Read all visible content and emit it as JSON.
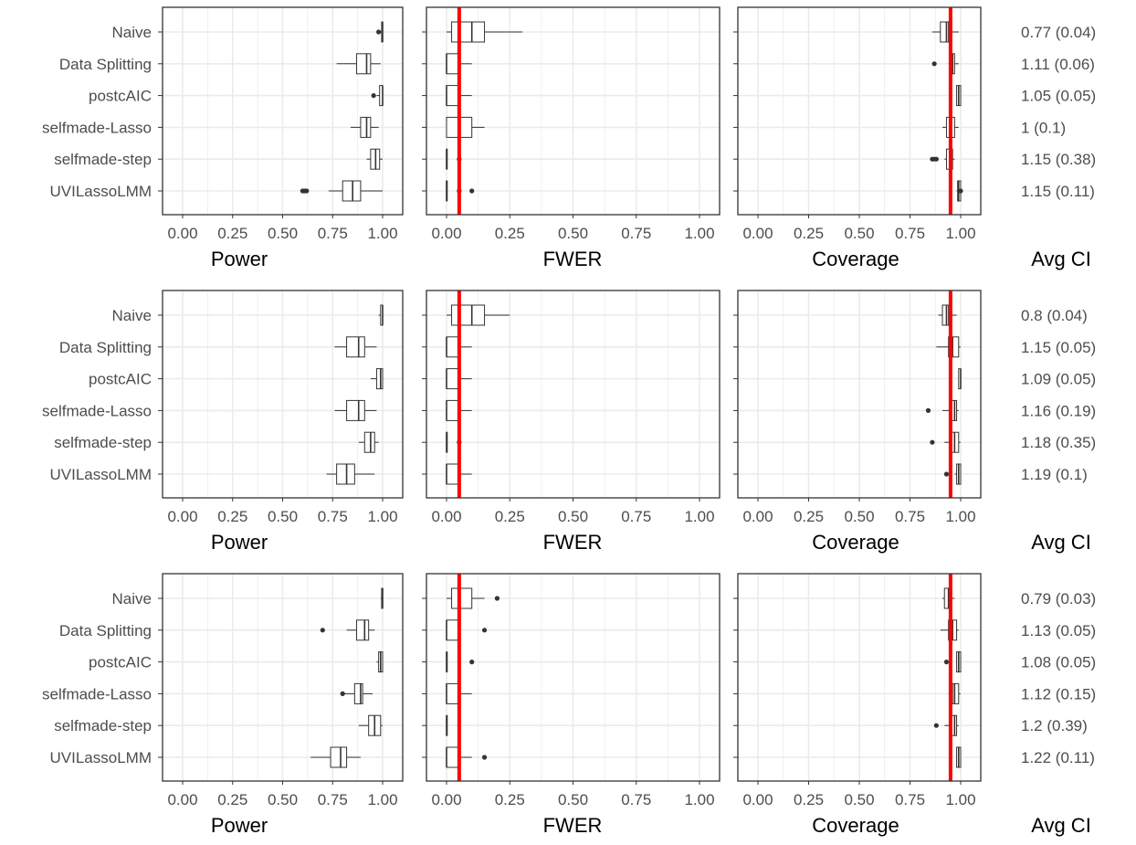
{
  "chart_data": {
    "type": "boxplot",
    "methods": [
      "Naive",
      "Data Splitting",
      "postcAIC",
      "selfmade-Lasso",
      "selfmade-step",
      "UVILassoLMM"
    ],
    "panel_xlabels": [
      "Power",
      "FWER",
      "Coverage",
      "Avg CI"
    ],
    "xlim": [
      0,
      1
    ],
    "x_ticks": [
      "0.00",
      "0.25",
      "0.50",
      "0.75",
      "1.00"
    ],
    "reference_lines": {
      "FWER": 0.05,
      "Coverage": 0.95
    },
    "reference_line_color": "#ff0000",
    "rows": [
      {
        "power": [
          {
            "whisker": [
              0.99,
              1.0
            ],
            "box": [
              0.995,
              1.0,
              1.0
            ],
            "outliers": [
              0.98
            ]
          },
          {
            "whisker": [
              0.77,
              0.99
            ],
            "box": [
              0.87,
              0.92,
              0.94
            ],
            "outliers": []
          },
          {
            "whisker": [
              0.97,
              1.0
            ],
            "box": [
              0.985,
              1.0,
              1.0
            ],
            "outliers": [
              0.955
            ]
          },
          {
            "whisker": [
              0.84,
              0.98
            ],
            "box": [
              0.89,
              0.92,
              0.94
            ],
            "outliers": []
          },
          {
            "whisker": [
              0.92,
              1.0
            ],
            "box": [
              0.94,
              0.965,
              0.985
            ],
            "outliers": []
          },
          {
            "whisker": [
              0.73,
              1.0
            ],
            "box": [
              0.8,
              0.85,
              0.89
            ],
            "outliers": [
              0.6,
              0.61,
              0.62
            ]
          }
        ],
        "fwer": [
          {
            "whisker": [
              0.0,
              0.3
            ],
            "box": [
              0.02,
              0.1,
              0.15
            ],
            "outliers": []
          },
          {
            "whisker": [
              0.0,
              0.1
            ],
            "box": [
              0.0,
              0.0,
              0.05
            ],
            "outliers": []
          },
          {
            "whisker": [
              0.0,
              0.1
            ],
            "box": [
              0.0,
              0.0,
              0.05
            ],
            "outliers": []
          },
          {
            "whisker": [
              0.0,
              0.15
            ],
            "box": [
              0.0,
              0.05,
              0.1
            ],
            "outliers": []
          },
          {
            "whisker": [
              0.0,
              0.0
            ],
            "box": [
              0.0,
              0.0,
              0.0
            ],
            "outliers": [
              0.05
            ]
          },
          {
            "whisker": [
              0.0,
              0.0
            ],
            "box": [
              0.0,
              0.0,
              0.0
            ],
            "outliers": [
              0.05,
              0.1
            ]
          }
        ],
        "coverage": [
          {
            "whisker": [
              0.86,
              0.99
            ],
            "box": [
              0.9,
              0.93,
              0.94
            ],
            "outliers": []
          },
          {
            "whisker": [
              0.94,
              0.99
            ],
            "box": [
              0.95,
              0.96,
              0.97
            ],
            "outliers": [
              0.87
            ]
          },
          {
            "whisker": [
              0.98,
              1.0
            ],
            "box": [
              0.98,
              0.99,
              1.0
            ],
            "outliers": []
          },
          {
            "whisker": [
              0.91,
              0.99
            ],
            "box": [
              0.93,
              0.95,
              0.97
            ],
            "outliers": []
          },
          {
            "whisker": [
              0.92,
              0.97
            ],
            "box": [
              0.93,
              0.95,
              0.96
            ],
            "outliers": [
              0.86,
              0.87,
              0.88
            ]
          },
          {
            "whisker": [
              0.98,
              1.0
            ],
            "box": [
              0.985,
              0.99,
              1.0
            ],
            "outliers": [
              1.0
            ]
          }
        ],
        "avg_ci": [
          "0.77 (0.04)",
          "1.11 (0.06)",
          "1.05 (0.05)",
          "1 (0.1)",
          "1.15 (0.38)",
          "1.15 (0.11)"
        ]
      },
      {
        "power": [
          {
            "whisker": [
              0.98,
              1.0
            ],
            "box": [
              0.99,
              1.0,
              1.0
            ],
            "outliers": []
          },
          {
            "whisker": [
              0.76,
              0.97
            ],
            "box": [
              0.82,
              0.88,
              0.91
            ],
            "outliers": []
          },
          {
            "whisker": [
              0.94,
              1.0
            ],
            "box": [
              0.97,
              0.99,
              1.0
            ],
            "outliers": []
          },
          {
            "whisker": [
              0.76,
              0.97
            ],
            "box": [
              0.82,
              0.88,
              0.91
            ],
            "outliers": []
          },
          {
            "whisker": [
              0.88,
              0.98
            ],
            "box": [
              0.91,
              0.94,
              0.96
            ],
            "outliers": []
          },
          {
            "whisker": [
              0.72,
              0.96
            ],
            "box": [
              0.77,
              0.82,
              0.86
            ],
            "outliers": []
          }
        ],
        "fwer": [
          {
            "whisker": [
              0.0,
              0.25
            ],
            "box": [
              0.02,
              0.1,
              0.15
            ],
            "outliers": []
          },
          {
            "whisker": [
              0.0,
              0.1
            ],
            "box": [
              0.0,
              0.0,
              0.05
            ],
            "outliers": []
          },
          {
            "whisker": [
              0.0,
              0.1
            ],
            "box": [
              0.0,
              0.0,
              0.05
            ],
            "outliers": []
          },
          {
            "whisker": [
              0.0,
              0.1
            ],
            "box": [
              0.0,
              0.0,
              0.05
            ],
            "outliers": []
          },
          {
            "whisker": [
              0.0,
              0.0
            ],
            "box": [
              0.0,
              0.0,
              0.0
            ],
            "outliers": [
              0.05
            ]
          },
          {
            "whisker": [
              0.0,
              0.1
            ],
            "box": [
              0.0,
              0.0,
              0.05
            ],
            "outliers": []
          }
        ],
        "coverage": [
          {
            "whisker": [
              0.89,
              0.98
            ],
            "box": [
              0.91,
              0.93,
              0.94
            ],
            "outliers": []
          },
          {
            "whisker": [
              0.88,
              1.0
            ],
            "box": [
              0.94,
              0.96,
              0.99
            ],
            "outliers": []
          },
          {
            "whisker": [
              0.99,
              1.0
            ],
            "box": [
              0.99,
              1.0,
              1.0
            ],
            "outliers": []
          },
          {
            "whisker": [
              0.91,
              0.99
            ],
            "box": [
              0.95,
              0.97,
              0.98
            ],
            "outliers": [
              0.84
            ]
          },
          {
            "whisker": [
              0.92,
              1.0
            ],
            "box": [
              0.95,
              0.97,
              0.99
            ],
            "outliers": [
              0.86
            ]
          },
          {
            "whisker": [
              0.97,
              1.0
            ],
            "box": [
              0.98,
              0.99,
              1.0
            ],
            "outliers": [
              0.93
            ]
          }
        ],
        "avg_ci": [
          "0.8 (0.04)",
          "1.15 (0.05)",
          "1.09 (0.05)",
          "1.16 (0.19)",
          "1.18 (0.35)",
          "1.19 (0.1)"
        ]
      },
      {
        "power": [
          {
            "whisker": [
              0.99,
              1.0
            ],
            "box": [
              0.995,
              1.0,
              1.0
            ],
            "outliers": []
          },
          {
            "whisker": [
              0.82,
              0.96
            ],
            "box": [
              0.87,
              0.91,
              0.93
            ],
            "outliers": [
              0.7
            ]
          },
          {
            "whisker": [
              0.97,
              1.0
            ],
            "box": [
              0.98,
              0.99,
              1.0
            ],
            "outliers": []
          },
          {
            "whisker": [
              0.79,
              0.95
            ],
            "box": [
              0.86,
              0.89,
              0.9
            ],
            "outliers": [
              0.8
            ]
          },
          {
            "whisker": [
              0.88,
              1.0
            ],
            "box": [
              0.93,
              0.96,
              0.99
            ],
            "outliers": []
          },
          {
            "whisker": [
              0.64,
              0.89
            ],
            "box": [
              0.74,
              0.79,
              0.82
            ],
            "outliers": []
          }
        ],
        "fwer": [
          {
            "whisker": [
              0.0,
              0.15
            ],
            "box": [
              0.02,
              0.05,
              0.1
            ],
            "outliers": [
              0.2
            ]
          },
          {
            "whisker": [
              0.0,
              0.0
            ],
            "box": [
              0.0,
              0.0,
              0.05
            ],
            "outliers": [
              0.15
            ]
          },
          {
            "whisker": [
              0.0,
              0.0
            ],
            "box": [
              0.0,
              0.0,
              0.0
            ],
            "outliers": [
              0.1
            ]
          },
          {
            "whisker": [
              0.0,
              0.1
            ],
            "box": [
              0.0,
              0.0,
              0.05
            ],
            "outliers": []
          },
          {
            "whisker": [
              0.0,
              0.0
            ],
            "box": [
              0.0,
              0.0,
              0.0
            ],
            "outliers": []
          },
          {
            "whisker": [
              0.0,
              0.1
            ],
            "box": [
              0.0,
              0.0,
              0.05
            ],
            "outliers": [
              0.15
            ]
          }
        ],
        "coverage": [
          {
            "whisker": [
              0.91,
              0.97
            ],
            "box": [
              0.92,
              0.94,
              0.95
            ],
            "outliers": []
          },
          {
            "whisker": [
              0.9,
              0.99
            ],
            "box": [
              0.94,
              0.96,
              0.98
            ],
            "outliers": []
          },
          {
            "whisker": [
              0.98,
              1.0
            ],
            "box": [
              0.98,
              0.99,
              1.0
            ],
            "outliers": [
              0.93
            ]
          },
          {
            "whisker": [
              0.94,
              1.0
            ],
            "box": [
              0.96,
              0.97,
              0.99
            ],
            "outliers": []
          },
          {
            "whisker": [
              0.92,
              0.99
            ],
            "box": [
              0.95,
              0.97,
              0.98
            ],
            "outliers": [
              0.88
            ]
          },
          {
            "whisker": [
              0.98,
              1.0
            ],
            "box": [
              0.98,
              0.99,
              1.0
            ],
            "outliers": []
          }
        ],
        "avg_ci": [
          "0.79 (0.03)",
          "1.13 (0.05)",
          "1.08 (0.05)",
          "1.12 (0.15)",
          "1.2 (0.39)",
          "1.22 (0.11)"
        ]
      }
    ]
  }
}
